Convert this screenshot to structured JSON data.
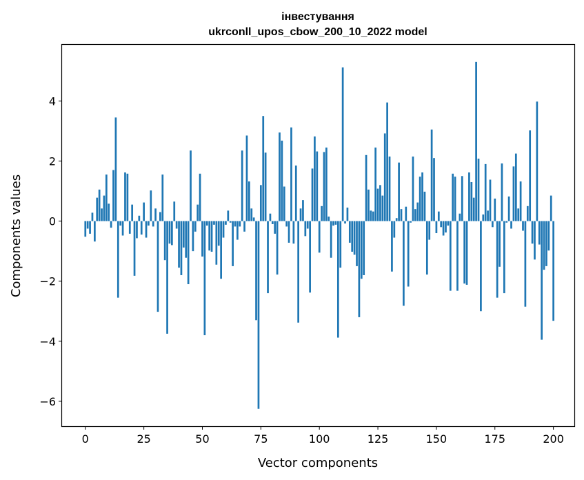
{
  "chart_data": {
    "type": "bar",
    "title_line1": "інвестування",
    "title_line2": "ukrconll_upos_cbow_200_10_2022 model",
    "xlabel": "Vector components",
    "ylabel": "Components values",
    "xlim": [
      -9.95,
      208.95
    ],
    "ylim": [
      -6.83,
      5.87
    ],
    "xticks": [
      0,
      25,
      50,
      75,
      100,
      125,
      150,
      175,
      200
    ],
    "yticks": [
      -6,
      -4,
      -2,
      0,
      2,
      4
    ],
    "grid": false,
    "bar_color": "#1f77b4",
    "values": [
      -0.52,
      -0.25,
      -0.42,
      0.28,
      -0.68,
      0.78,
      1.05,
      0.42,
      0.85,
      1.55,
      0.58,
      -0.22,
      1.7,
      3.45,
      -2.55,
      -0.15,
      -0.48,
      1.62,
      1.58,
      -0.42,
      0.55,
      -1.82,
      -0.57,
      0.18,
      -0.45,
      0.62,
      -0.55,
      -0.15,
      1.02,
      -0.18,
      0.42,
      -3.02,
      0.3,
      1.55,
      -1.3,
      -3.75,
      -0.75,
      -0.8,
      0.65,
      -0.25,
      -1.55,
      -1.8,
      -0.88,
      -1.22,
      -2.1,
      2.35,
      -1.0,
      -0.35,
      0.55,
      1.58,
      -1.18,
      -3.8,
      -0.15,
      -0.98,
      -1.02,
      -0.12,
      -1.45,
      -0.82,
      -1.92,
      -0.55,
      -0.12,
      0.35,
      -0.05,
      -1.5,
      -0.18,
      -0.62,
      -0.18,
      2.35,
      -0.35,
      2.85,
      1.32,
      0.42,
      0.12,
      -3.3,
      -6.25,
      1.2,
      3.5,
      2.28,
      -2.4,
      0.25,
      -0.1,
      -0.42,
      -1.78,
      2.95,
      2.68,
      1.15,
      -0.18,
      -0.72,
      3.12,
      -0.75,
      1.85,
      -3.38,
      0.42,
      0.7,
      -0.5,
      -0.25,
      -2.38,
      1.75,
      2.82,
      2.32,
      -1.05,
      0.5,
      2.3,
      2.45,
      0.15,
      -1.22,
      -0.15,
      -0.12,
      -3.88,
      -1.55,
      5.12,
      -0.08,
      0.45,
      -0.72,
      -1.02,
      -1.12,
      -1.5,
      -3.2,
      -1.92,
      -1.8,
      2.2,
      1.05,
      0.35,
      0.32,
      2.45,
      1.08,
      1.2,
      0.85,
      2.92,
      3.95,
      2.15,
      -1.68,
      -0.55,
      0.1,
      1.95,
      0.4,
      -2.82,
      0.48,
      -2.18,
      -0.05,
      2.15,
      0.4,
      0.62,
      1.48,
      1.62,
      0.98,
      -1.78,
      -0.62,
      3.05,
      2.1,
      -0.4,
      0.32,
      -0.2,
      -0.48,
      -0.38,
      -0.15,
      -2.32,
      1.58,
      1.48,
      -2.32,
      0.25,
      1.5,
      -2.08,
      -2.12,
      1.62,
      1.3,
      0.78,
      5.3,
      2.08,
      -3.0,
      0.22,
      1.9,
      0.35,
      1.38,
      -0.2,
      0.75,
      -2.55,
      -1.52,
      1.92,
      -2.4,
      -0.05,
      0.82,
      -0.25,
      1.82,
      2.25,
      0.42,
      1.32,
      -0.32,
      -2.85,
      0.5,
      3.02,
      -0.75,
      -1.28,
      3.98,
      -0.78,
      -3.95,
      -1.62,
      -1.5,
      -0.98,
      0.85,
      -3.32
    ]
  }
}
